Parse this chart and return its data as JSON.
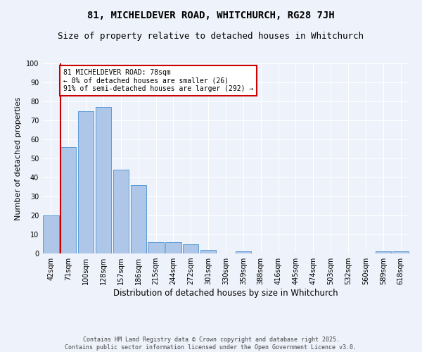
{
  "title": "81, MICHELDEVER ROAD, WHITCHURCH, RG28 7JH",
  "subtitle": "Size of property relative to detached houses in Whitchurch",
  "xlabel": "Distribution of detached houses by size in Whitchurch",
  "ylabel": "Number of detached properties",
  "categories": [
    "42sqm",
    "71sqm",
    "100sqm",
    "128sqm",
    "157sqm",
    "186sqm",
    "215sqm",
    "244sqm",
    "272sqm",
    "301sqm",
    "330sqm",
    "359sqm",
    "388sqm",
    "416sqm",
    "445sqm",
    "474sqm",
    "503sqm",
    "532sqm",
    "560sqm",
    "589sqm",
    "618sqm"
  ],
  "values": [
    20,
    56,
    75,
    77,
    44,
    36,
    6,
    6,
    5,
    2,
    0,
    1,
    0,
    0,
    0,
    0,
    0,
    0,
    0,
    1,
    1
  ],
  "bar_color": "#aec6e8",
  "bar_edge_color": "#5b9bd5",
  "background_color": "#eef2fa",
  "grid_color": "#ffffff",
  "annotation_line1": "81 MICHELDEVER ROAD: 78sqm",
  "annotation_line2": "← 8% of detached houses are smaller (26)",
  "annotation_line3": "91% of semi-detached houses are larger (292) →",
  "annotation_box_color": "#ffffff",
  "annotation_box_edge_color": "#cc0000",
  "vline_color": "#cc0000",
  "ylim": [
    0,
    100
  ],
  "yticks": [
    0,
    10,
    20,
    30,
    40,
    50,
    60,
    70,
    80,
    90,
    100
  ],
  "footnote": "Contains HM Land Registry data © Crown copyright and database right 2025.\nContains public sector information licensed under the Open Government Licence v3.0.",
  "title_fontsize": 10,
  "subtitle_fontsize": 9,
  "xlabel_fontsize": 8.5,
  "ylabel_fontsize": 8,
  "tick_fontsize": 7,
  "annotation_fontsize": 7,
  "footnote_fontsize": 6
}
